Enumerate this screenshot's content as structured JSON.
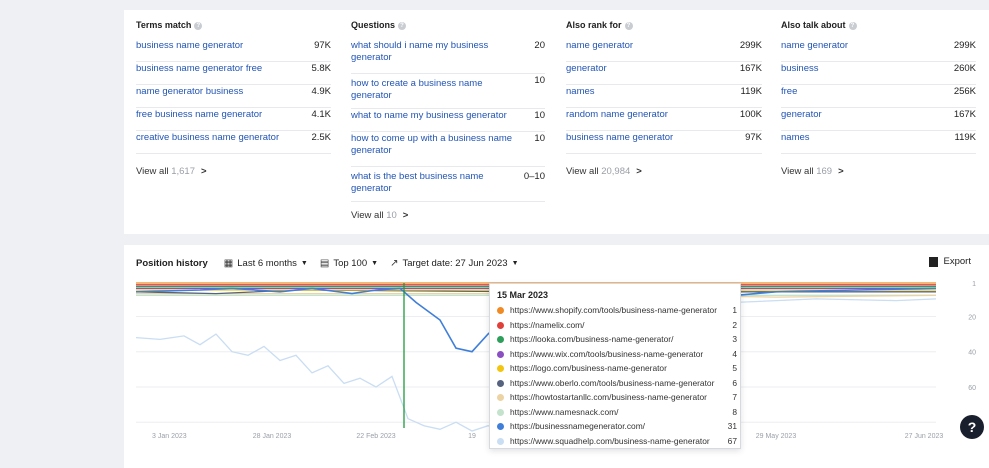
{
  "columns": [
    {
      "header": "Terms match",
      "rows": [
        {
          "keyword": "business name generator",
          "volume": "97K"
        },
        {
          "keyword": "business name generator free",
          "volume": "5.8K"
        },
        {
          "keyword": "name generator business",
          "volume": "4.9K"
        },
        {
          "keyword": "free business name generator",
          "volume": "4.1K"
        },
        {
          "keyword": "creative business name generator",
          "volume": "2.5K"
        }
      ],
      "view_all_label": "View all",
      "view_all_count": "1,617"
    },
    {
      "header": "Questions",
      "rows": [
        {
          "keyword": "what should i name my business generator",
          "volume": "20"
        },
        {
          "keyword": "how to create a business name generator",
          "volume": "10"
        },
        {
          "keyword": "what to name my business generator",
          "volume": "10"
        },
        {
          "keyword": "how to come up with a business name generator",
          "volume": "10"
        },
        {
          "keyword": "what is the best business name generator",
          "volume": "0–10"
        }
      ],
      "view_all_label": "View all",
      "view_all_count": "10"
    },
    {
      "header": "Also rank for",
      "rows": [
        {
          "keyword": "name generator",
          "volume": "299K"
        },
        {
          "keyword": "generator",
          "volume": "167K"
        },
        {
          "keyword": "names",
          "volume": "119K"
        },
        {
          "keyword": "random name generator",
          "volume": "100K"
        },
        {
          "keyword": "business name generator",
          "volume": "97K"
        }
      ],
      "view_all_label": "View all",
      "view_all_count": "20,984"
    },
    {
      "header": "Also talk about",
      "rows": [
        {
          "keyword": "name generator",
          "volume": "299K"
        },
        {
          "keyword": "business",
          "volume": "260K"
        },
        {
          "keyword": "free",
          "volume": "256K"
        },
        {
          "keyword": "generator",
          "volume": "167K"
        },
        {
          "keyword": "names",
          "volume": "119K"
        }
      ],
      "view_all_label": "View all",
      "view_all_count": "169"
    }
  ],
  "position_history": {
    "title": "Position history",
    "range_label": "Last 6 months",
    "top_label": "Top 100",
    "target_label": "Target date: 27 Jun 2023",
    "export_label": "Export"
  },
  "tooltip": {
    "date": "15 Mar 2023",
    "entries": [
      {
        "url": "https://www.shopify.com/tools/business-name-generator",
        "position": "1",
        "color": "#f08a24"
      },
      {
        "url": "https://namelix.com/",
        "position": "2",
        "color": "#e0403a"
      },
      {
        "url": "https://looka.com/business-name-generator/",
        "position": "3",
        "color": "#2e9e5b"
      },
      {
        "url": "https://www.wix.com/tools/business-name-generator",
        "position": "4",
        "color": "#8a4fc0"
      },
      {
        "url": "https://logo.com/business-name-generator",
        "position": "5",
        "color": "#f2c511"
      },
      {
        "url": "https://www.oberlo.com/tools/business-name-generator",
        "position": "6",
        "color": "#55637f"
      },
      {
        "url": "https://howtostartanllc.com/business-name-generator",
        "position": "7",
        "color": "#ecd3a3"
      },
      {
        "url": "https://www.namesnack.com/",
        "position": "8",
        "color": "#c3e3cd"
      },
      {
        "url": "https://businessnamegenerator.com/",
        "position": "31",
        "color": "#3f7fd9"
      },
      {
        "url": "https://www.squadhelp.com/business-name-generator",
        "position": "67",
        "color": "#c9ddf3"
      }
    ]
  },
  "chart_data": {
    "type": "line",
    "x_ticks": [
      "3 Jan 2023",
      "28 Jan 2023",
      "22 Feb 2023",
      "19",
      "29 May 2023",
      "27 Jun 2023"
    ],
    "y_ticks": [
      "1",
      "20",
      "40",
      "60",
      "80"
    ],
    "ylim": [
      1,
      100
    ],
    "y_inverted": true,
    "marker_date": "15 Mar 2023",
    "series": [
      {
        "name": "https://businessnamegenerator.com/",
        "color": "#3f7fd9",
        "points": [
          [
            0,
            6
          ],
          [
            0.08,
            5
          ],
          [
            0.12,
            4
          ],
          [
            0.18,
            6
          ],
          [
            0.22,
            4
          ],
          [
            0.27,
            7
          ],
          [
            0.3,
            5
          ],
          [
            0.33,
            4
          ],
          [
            0.35,
            12
          ],
          [
            0.38,
            22
          ],
          [
            0.4,
            38
          ],
          [
            0.42,
            40
          ],
          [
            0.44,
            30
          ],
          [
            0.46,
            22
          ],
          [
            0.48,
            38
          ],
          [
            0.5,
            20
          ],
          [
            0.52,
            32
          ],
          [
            0.54,
            18
          ],
          [
            0.56,
            40
          ],
          [
            0.58,
            22
          ],
          [
            0.6,
            41
          ],
          [
            0.62,
            20
          ],
          [
            0.63,
            33
          ],
          [
            0.66,
            22
          ],
          [
            0.7,
            10
          ],
          [
            0.8,
            6
          ],
          [
            0.9,
            5
          ],
          [
            1,
            4
          ]
        ]
      },
      {
        "name": "https://www.squadhelp.com/business-name-generator",
        "color": "#c9ddf3",
        "points": [
          [
            0,
            32
          ],
          [
            0.03,
            33
          ],
          [
            0.06,
            31
          ],
          [
            0.08,
            36
          ],
          [
            0.1,
            30
          ],
          [
            0.12,
            40
          ],
          [
            0.14,
            42
          ],
          [
            0.16,
            37
          ],
          [
            0.18,
            45
          ],
          [
            0.2,
            42
          ],
          [
            0.22,
            52
          ],
          [
            0.24,
            48
          ],
          [
            0.26,
            58
          ],
          [
            0.28,
            55
          ],
          [
            0.3,
            60
          ],
          [
            0.32,
            54
          ],
          [
            0.34,
            78
          ],
          [
            0.36,
            82
          ],
          [
            0.38,
            84
          ],
          [
            0.4,
            80
          ],
          [
            0.42,
            85
          ],
          [
            0.44,
            82
          ],
          [
            0.46,
            84
          ],
          [
            0.48,
            80
          ],
          [
            0.5,
            78
          ],
          [
            0.52,
            70
          ],
          [
            0.54,
            62
          ],
          [
            0.56,
            58
          ],
          [
            0.58,
            60
          ],
          [
            0.6,
            50
          ],
          [
            0.62,
            40
          ],
          [
            0.64,
            34
          ],
          [
            0.68,
            22
          ],
          [
            0.75,
            12
          ],
          [
            0.85,
            10
          ],
          [
            0.95,
            11
          ],
          [
            1,
            10
          ]
        ]
      },
      {
        "name": "https://www.shopify.com/tools/business-name-generator",
        "color": "#f08a24",
        "points": [
          [
            0,
            1
          ],
          [
            0.5,
            1
          ],
          [
            1,
            1
          ]
        ]
      },
      {
        "name": "https://namelix.com/",
        "color": "#e0403a",
        "points": [
          [
            0,
            2
          ],
          [
            0.5,
            2
          ],
          [
            1,
            2
          ]
        ]
      },
      {
        "name": "https://looka.com/business-name-generator/",
        "color": "#2e9e5b",
        "points": [
          [
            0,
            3
          ],
          [
            0.5,
            3
          ],
          [
            1,
            3
          ]
        ]
      },
      {
        "name": "https://www.wix.com/tools/business-name-generator",
        "color": "#8a4fc0",
        "points": [
          [
            0,
            4
          ],
          [
            0.5,
            4
          ],
          [
            1,
            4
          ]
        ]
      },
      {
        "name": "https://logo.com/business-name-generator",
        "color": "#f2c511",
        "points": [
          [
            0,
            5
          ],
          [
            0.5,
            5
          ],
          [
            1,
            5
          ]
        ]
      },
      {
        "name": "https://www.oberlo.com/tools/business-name-generator",
        "color": "#55637f",
        "points": [
          [
            0,
            6
          ],
          [
            0.1,
            7
          ],
          [
            0.2,
            5
          ],
          [
            0.5,
            6
          ],
          [
            1,
            6
          ]
        ]
      },
      {
        "name": "https://howtostartanllc.com/business-name-generator",
        "color": "#ecd3a3",
        "points": [
          [
            0,
            7
          ],
          [
            0.5,
            7
          ],
          [
            0.8,
            9
          ],
          [
            1,
            8
          ]
        ]
      },
      {
        "name": "https://www.namesnack.com/",
        "color": "#c3e3cd",
        "points": [
          [
            0,
            8
          ],
          [
            0.5,
            8
          ],
          [
            1,
            8
          ]
        ]
      }
    ]
  }
}
